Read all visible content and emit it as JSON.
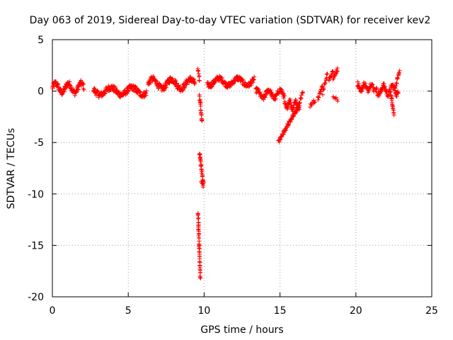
{
  "chart_data": {
    "type": "scatter",
    "title": "Day 063 of 2019, Sidereal Day-to-day VTEC variation (SDTVAR) for receiver kev2",
    "xlabel": "GPS time / hours",
    "ylabel": "SDTVAR / TECUs",
    "xlim": [
      0,
      25
    ],
    "ylim": [
      -20,
      5
    ],
    "xticks": [
      "0",
      "5",
      "10",
      "15",
      "20",
      "25"
    ],
    "yticks": [
      "5",
      "0",
      "-5",
      "-10",
      "-15",
      "-20"
    ],
    "grid": true,
    "marker": "+",
    "color": "#ff0000",
    "segments": [
      {
        "name": "seg-00-02",
        "x0": 0.0,
        "x1": 2.1,
        "yc": 0.3,
        "amp": 0.45,
        "noise": 0.6,
        "step": 0.02
      },
      {
        "name": "seg-03-06",
        "x0": 2.7,
        "x1": 6.2,
        "yc": 0.0,
        "amp": 0.35,
        "noise": 0.6,
        "step": 0.02
      },
      {
        "name": "seg-06-09",
        "x0": 6.3,
        "x1": 9.4,
        "yc": 0.7,
        "amp": 0.45,
        "noise": 0.6,
        "step": 0.02
      },
      {
        "name": "seg-10-13",
        "x0": 10.2,
        "x1": 13.3,
        "yc": 0.9,
        "amp": 0.35,
        "noise": 0.5,
        "step": 0.02
      },
      {
        "name": "seg-13-15",
        "x0": 13.4,
        "x1": 15.3,
        "yc": -0.3,
        "amp": 0.4,
        "noise": 0.5,
        "step": 0.02
      },
      {
        "name": "seg-15-16",
        "x0": 15.3,
        "x1": 16.3,
        "yc": -1.3,
        "amp": 0.4,
        "noise": 0.6,
        "step": 0.02
      },
      {
        "name": "seg-20-21",
        "x0": 20.1,
        "x1": 21.2,
        "yc": 0.4,
        "amp": 0.3,
        "noise": 0.5,
        "step": 0.02
      },
      {
        "name": "seg-21-23",
        "x0": 21.3,
        "x1": 22.8,
        "yc": 0.1,
        "amp": 0.4,
        "noise": 0.6,
        "step": 0.02
      }
    ],
    "ramps": [
      {
        "name": "spike-top-9.7",
        "x0": 9.6,
        "x1": 9.7,
        "y0": 2.3,
        "y1": 1.0,
        "n": 8
      },
      {
        "name": "spike-drop-9.8",
        "x0": 9.7,
        "x1": 9.85,
        "y0": -0.5,
        "y1": -3.0,
        "n": 20
      },
      {
        "name": "spike-low-9.6",
        "x0": 9.6,
        "x1": 9.75,
        "y0": -11.8,
        "y1": -18.2,
        "n": 45
      },
      {
        "name": "spike-mid-9.7",
        "x0": 9.7,
        "x1": 9.95,
        "y0": -6.0,
        "y1": -9.0,
        "n": 30
      },
      {
        "name": "spike-low2-9.7",
        "x0": 9.8,
        "x1": 9.95,
        "y0": -8.8,
        "y1": -9.2,
        "n": 6
      },
      {
        "name": "ramp-15",
        "x0": 14.9,
        "x1": 16.2,
        "y0": -4.9,
        "y1": -1.5,
        "n": 60
      },
      {
        "name": "ramp-16",
        "x0": 16.2,
        "x1": 16.5,
        "y0": -1.5,
        "y1": 0.0,
        "n": 12
      },
      {
        "name": "rise-17",
        "x0": 17.0,
        "x1": 17.3,
        "y0": -1.4,
        "y1": -0.9,
        "n": 10
      },
      {
        "name": "rise-17b",
        "x0": 17.5,
        "x1": 17.8,
        "y0": -0.8,
        "y1": 0.6,
        "n": 14
      },
      {
        "name": "rise-18",
        "x0": 17.8,
        "x1": 18.1,
        "y0": -0.2,
        "y1": 1.6,
        "n": 14
      },
      {
        "name": "rise-18b",
        "x0": 18.2,
        "x1": 18.5,
        "y0": 1.0,
        "y1": 2.0,
        "n": 12
      },
      {
        "name": "rise-18c",
        "x0": 18.5,
        "x1": 18.8,
        "y0": 1.2,
        "y1": 2.2,
        "n": 12
      },
      {
        "name": "drop-18.6",
        "x0": 18.5,
        "x1": 18.8,
        "y0": -0.5,
        "y1": -0.8,
        "n": 6
      },
      {
        "name": "drop-22.5",
        "x0": 22.3,
        "x1": 22.5,
        "y0": -0.3,
        "y1": -2.3,
        "n": 18
      },
      {
        "name": "rise-22.9",
        "x0": 22.6,
        "x1": 22.9,
        "y0": 0.5,
        "y1": 2.0,
        "n": 12
      }
    ]
  }
}
